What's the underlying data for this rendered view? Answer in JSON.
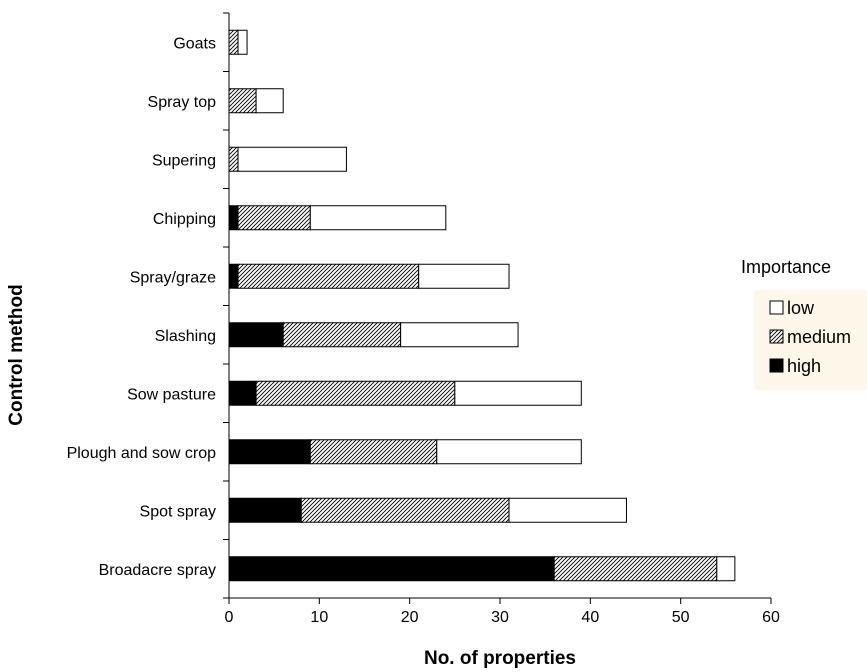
{
  "chart_data": {
    "type": "bar",
    "orientation": "horizontal",
    "stacked": true,
    "title": "",
    "xlabel": "No. of properties",
    "ylabel": "Control method",
    "xlim": [
      0,
      60
    ],
    "xticks": [
      0,
      10,
      20,
      30,
      40,
      50,
      60
    ],
    "grid": false,
    "legend_position": "right",
    "categories": [
      "Goats",
      "Spray top",
      "Supering",
      "Chipping",
      "Spray/graze",
      "Slashing",
      "Sow pasture",
      "Plough and sow crop",
      "Spot spray",
      "Broadacre spray"
    ],
    "series": [
      {
        "name": "high",
        "fill": "#000000",
        "values": [
          0,
          0,
          0,
          1,
          1,
          6,
          3,
          9,
          8,
          36
        ]
      },
      {
        "name": "medium",
        "fill": "hatch",
        "values": [
          1,
          3,
          1,
          8,
          20,
          13,
          22,
          14,
          23,
          18
        ]
      },
      {
        "name": "low",
        "fill": "#ffffff",
        "values": [
          1,
          3,
          12,
          15,
          10,
          13,
          14,
          16,
          13,
          2
        ]
      }
    ],
    "legend": {
      "title": "Importance",
      "entries": [
        "low",
        "medium",
        "high"
      ],
      "background": "#fdf7ea"
    }
  }
}
